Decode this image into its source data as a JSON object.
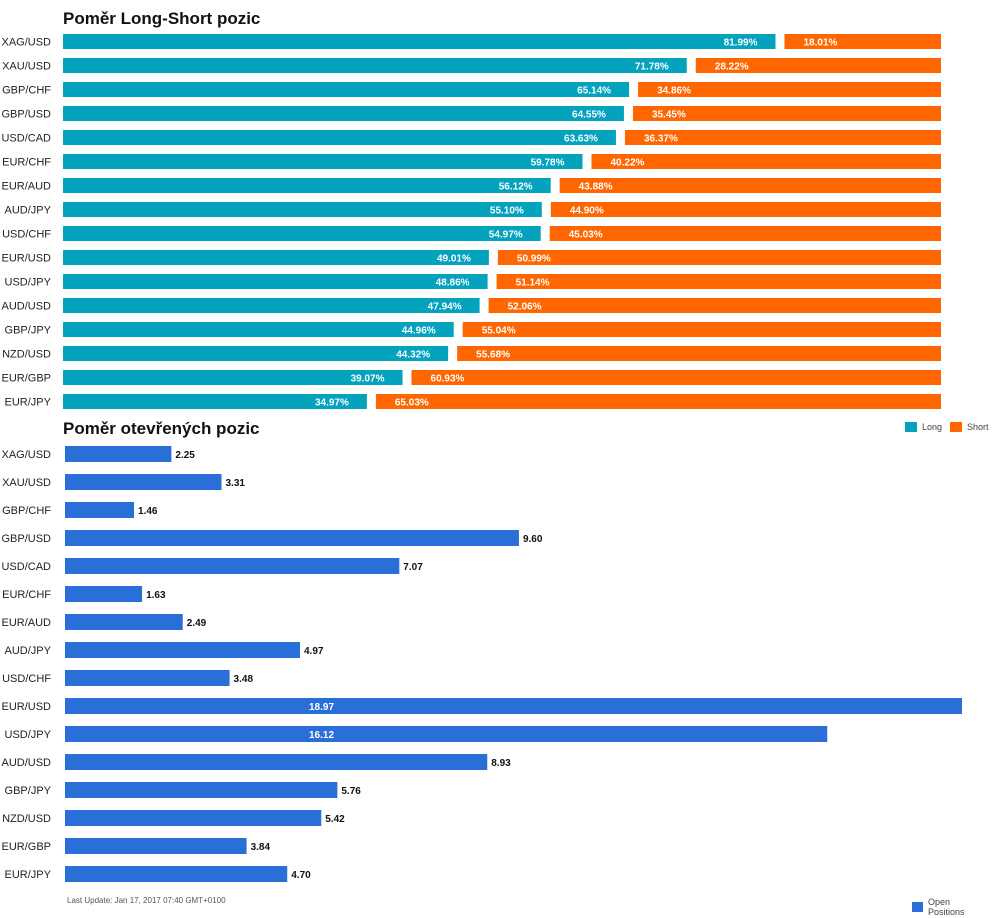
{
  "colors": {
    "long": "#03a2bd",
    "short": "#ff6600",
    "open": "#2a6ed8"
  },
  "chart_data": [
    {
      "type": "bar",
      "orientation": "horizontal",
      "stacked": true,
      "title": "Poměr Long-Short pozic",
      "categories": [
        "XAG/USD",
        "XAU/USD",
        "GBP/CHF",
        "GBP/USD",
        "USD/CAD",
        "EUR/CHF",
        "EUR/AUD",
        "AUD/JPY",
        "USD/CHF",
        "EUR/USD",
        "USD/JPY",
        "AUD/USD",
        "GBP/JPY",
        "NZD/USD",
        "EUR/GBP",
        "EUR/JPY"
      ],
      "series": [
        {
          "name": "Long",
          "values": [
            81.99,
            71.78,
            65.14,
            64.55,
            63.63,
            59.78,
            56.12,
            55.1,
            54.97,
            49.01,
            48.86,
            47.94,
            44.96,
            44.32,
            39.07,
            34.97
          ],
          "labels": [
            "81.99%",
            "71.78%",
            "65.14%",
            "64.55%",
            "63.63%",
            "59.78%",
            "56.12%",
            "55.10%",
            "54.97%",
            "49.01%",
            "48.86%",
            "47.94%",
            "44.96%",
            "44.32%",
            "39.07%",
            "34.97%"
          ]
        },
        {
          "name": "Short",
          "values": [
            18.01,
            28.22,
            34.86,
            35.45,
            36.37,
            40.22,
            43.88,
            44.9,
            45.03,
            50.99,
            51.14,
            52.06,
            55.04,
            55.68,
            60.93,
            65.03
          ],
          "labels": [
            "18.01%",
            "28.22%",
            "34.86%",
            "35.45%",
            "36.37%",
            "40.22%",
            "43.88%",
            "44.90%",
            "45.03%",
            "50.99%",
            "51.14%",
            "52.06%",
            "55.04%",
            "55.68%",
            "60.93%",
            "65.03%"
          ]
        }
      ],
      "xlim": [
        0,
        100
      ],
      "legend": "bottom-right"
    },
    {
      "type": "bar",
      "orientation": "horizontal",
      "title": "Poměr otevřených pozic",
      "categories": [
        "XAG/USD",
        "XAU/USD",
        "GBP/CHF",
        "GBP/USD",
        "USD/CAD",
        "EUR/CHF",
        "EUR/AUD",
        "AUD/JPY",
        "USD/CHF",
        "EUR/USD",
        "USD/JPY",
        "AUD/USD",
        "GBP/JPY",
        "NZD/USD",
        "EUR/GBP",
        "EUR/JPY"
      ],
      "series": [
        {
          "name": "Open Positions",
          "values": [
            2.25,
            3.31,
            1.46,
            9.6,
            7.07,
            1.63,
            2.49,
            4.97,
            3.48,
            18.97,
            16.12,
            8.93,
            5.76,
            5.42,
            3.84,
            4.7
          ],
          "labels": [
            "2.25",
            "3.31",
            "1.46",
            "9.60",
            "7.07",
            "1.63",
            "2.49",
            "4.97",
            "3.48",
            "18.97",
            "16.12",
            "8.93",
            "5.76",
            "5.42",
            "3.84",
            "4.70"
          ]
        }
      ],
      "xlim": [
        0,
        18.97
      ],
      "legend": "bottom-right"
    }
  ],
  "footer": {
    "last_update": "Last Update: Jan 17, 2017 07:40 GMT+0100"
  }
}
